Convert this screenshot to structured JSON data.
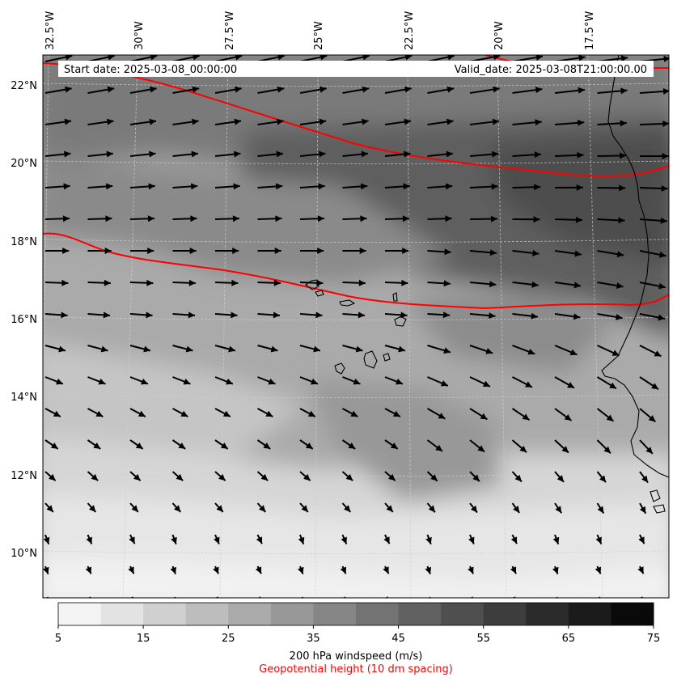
{
  "header": {
    "start_date": "Start date: 2025-03-08_00:00:00",
    "valid_date": "Valid_date: 2025-03-08T21:00:00.00"
  },
  "lon_labels": [
    "32.5°W",
    "30°W",
    "27.5°W",
    "25°W",
    "22.5°W",
    "20°W",
    "17.5°W"
  ],
  "lat_labels": [
    "22°N",
    "20°N",
    "18°N",
    "16°N",
    "14°N",
    "12°N",
    "10°N"
  ],
  "colorbar": {
    "ticks": [
      "5",
      "15",
      "25",
      "35",
      "45",
      "55",
      "65",
      "75"
    ],
    "colors": [
      "#f4f4f4",
      "#e3e3e3",
      "#d0d0d0",
      "#bdbdbd",
      "#aaaaaa",
      "#989898",
      "#868686",
      "#737373",
      "#616161",
      "#4f4f4f",
      "#3d3d3d",
      "#2b2b2b",
      "#1b1b1b",
      "#0a0a0a"
    ],
    "title": "200 hPa windspeed (m/s)",
    "subtitle": "Geopotential height (10 dm spacing)",
    "subtitle_color": "#ff0000"
  },
  "contour_color": "#ff0000"
}
